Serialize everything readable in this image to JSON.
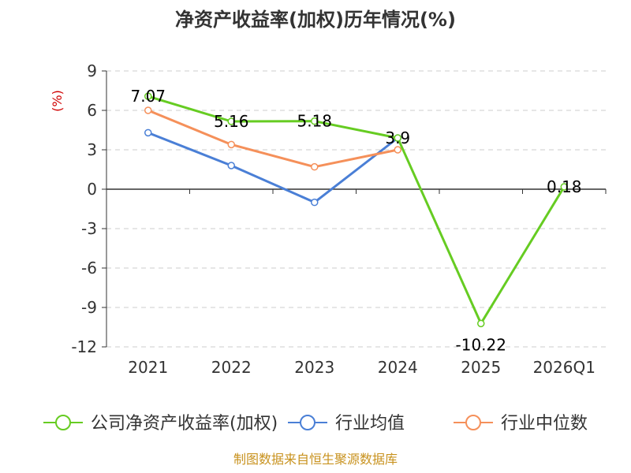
{
  "chart_data": {
    "type": "line",
    "title": "净资产收益率(加权)历年情况(%)",
    "ylabel": "(%)",
    "xlabel": "",
    "categories": [
      "2021",
      "2022",
      "2023",
      "2024",
      "2025",
      "2026Q1"
    ],
    "ylim": [
      -12,
      9
    ],
    "yticks": [
      9,
      6,
      3,
      0,
      -3,
      -6,
      -9,
      -12
    ],
    "grid": true,
    "legend_position": "bottom",
    "series": [
      {
        "name": "公司净资产收益率(加权)",
        "color": "#66cc22",
        "values": [
          7.07,
          5.16,
          5.18,
          3.9,
          -10.22,
          0.18
        ],
        "labels": [
          "7.07",
          "5.16",
          "5.18",
          "3.9",
          "-10.22",
          "0.18"
        ]
      },
      {
        "name": "行业均值",
        "color": "#4a7fd6",
        "values": [
          4.3,
          1.8,
          -1.0,
          3.9,
          null,
          null
        ]
      },
      {
        "name": "行业中位数",
        "color": "#f5905a",
        "values": [
          6.0,
          3.4,
          1.7,
          3.0,
          null,
          null
        ]
      }
    ]
  },
  "source": "制图数据来自恒生聚源数据库"
}
